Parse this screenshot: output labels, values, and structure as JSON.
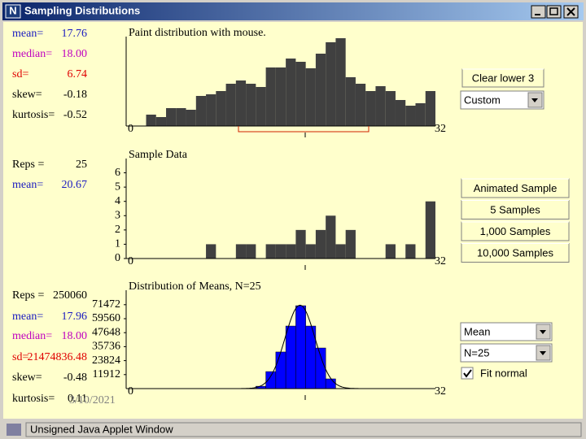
{
  "window": {
    "title": "Sampling Distributions",
    "status": "Unsigned Java Applet Window"
  },
  "panels": [
    {
      "stats": [
        {
          "label": "mean=",
          "value": "17.76",
          "color": "#1a1ac0"
        },
        {
          "label": "median=",
          "value": "18.00",
          "color": "#c000c0"
        },
        {
          "label": "sd=",
          "value": "6.74",
          "color": "#e00000"
        },
        {
          "label": "skew=",
          "value": "-0.18",
          "color": "#000000"
        },
        {
          "label": "kurtosis=",
          "value": "-0.52",
          "color": "#000000"
        }
      ],
      "caption": "Paint distribution with mouse.",
      "x_min_label": "0",
      "x_max_label": "32",
      "ylim": [
        0,
        110
      ],
      "bar_color": "#404040",
      "bars": [
        0,
        0,
        14,
        11,
        22,
        22,
        20,
        37,
        39,
        43,
        52,
        56,
        52,
        48,
        72,
        72,
        83,
        79,
        71,
        89,
        103,
        108,
        60,
        52,
        43,
        49,
        43,
        32,
        25,
        28,
        43
      ]
    },
    {
      "stats": [
        {
          "label": "Reps =",
          "value": "25",
          "color": "#000000"
        },
        {
          "label": "mean=",
          "value": "20.67",
          "color": "#1a1ac0"
        }
      ],
      "caption": "Sample Data",
      "x_min_label": "0",
      "x_max_label": "32",
      "ylim": [
        0,
        7
      ],
      "yticks": [
        0,
        1,
        2,
        3,
        4,
        5,
        6
      ],
      "bar_color": "#404040",
      "bars": [
        0,
        0,
        0,
        0,
        0,
        0,
        0,
        0,
        1,
        0,
        0,
        1,
        1,
        0,
        1,
        1,
        1,
        2,
        1,
        2,
        3,
        1,
        2,
        0,
        0,
        0,
        1,
        0,
        1,
        0,
        4
      ]
    },
    {
      "stats": [
        {
          "label": "Reps =",
          "value": "250060",
          "color": "#000000"
        },
        {
          "label": "mean=",
          "value": "17.96",
          "color": "#1a1ac0"
        },
        {
          "label": "median=",
          "value": "18.00",
          "color": "#c000c0"
        },
        {
          "label": "sd=",
          "value": "21474836.48",
          "color": "#e00000"
        },
        {
          "label": "skew=",
          "value": "-0.48",
          "color": "#000000"
        },
        {
          "label": "kurtosis=",
          "value": "0.11",
          "color": "#000000"
        }
      ],
      "caption": "Distribution of Means, N=25",
      "x_min_label": "0",
      "x_max_label": "32",
      "ylim": [
        0,
        83800
      ],
      "yticks": [
        11912,
        23824,
        35736,
        47648,
        59560,
        71472
      ],
      "bar_color": "#0000ff",
      "fit_normal": true,
      "bars": [
        0,
        0,
        0,
        0,
        0,
        0,
        0,
        0,
        0,
        0,
        0,
        0,
        0,
        2000,
        14500,
        31200,
        53300,
        70600,
        53300,
        34600,
        8300,
        0,
        0,
        0,
        0,
        0,
        0,
        0,
        0,
        0,
        0
      ]
    }
  ],
  "controls": {
    "clear_button": "Clear lower 3",
    "population_select": "Custom",
    "sample_buttons": [
      "Animated Sample",
      "5 Samples",
      "1,000 Samples",
      "10,000 Samples"
    ],
    "statistic_select": "Mean",
    "size_select": "N=25",
    "fit_checkbox": {
      "label": "Fit normal",
      "checked": true
    }
  },
  "footer_date": "3/10/2021"
}
